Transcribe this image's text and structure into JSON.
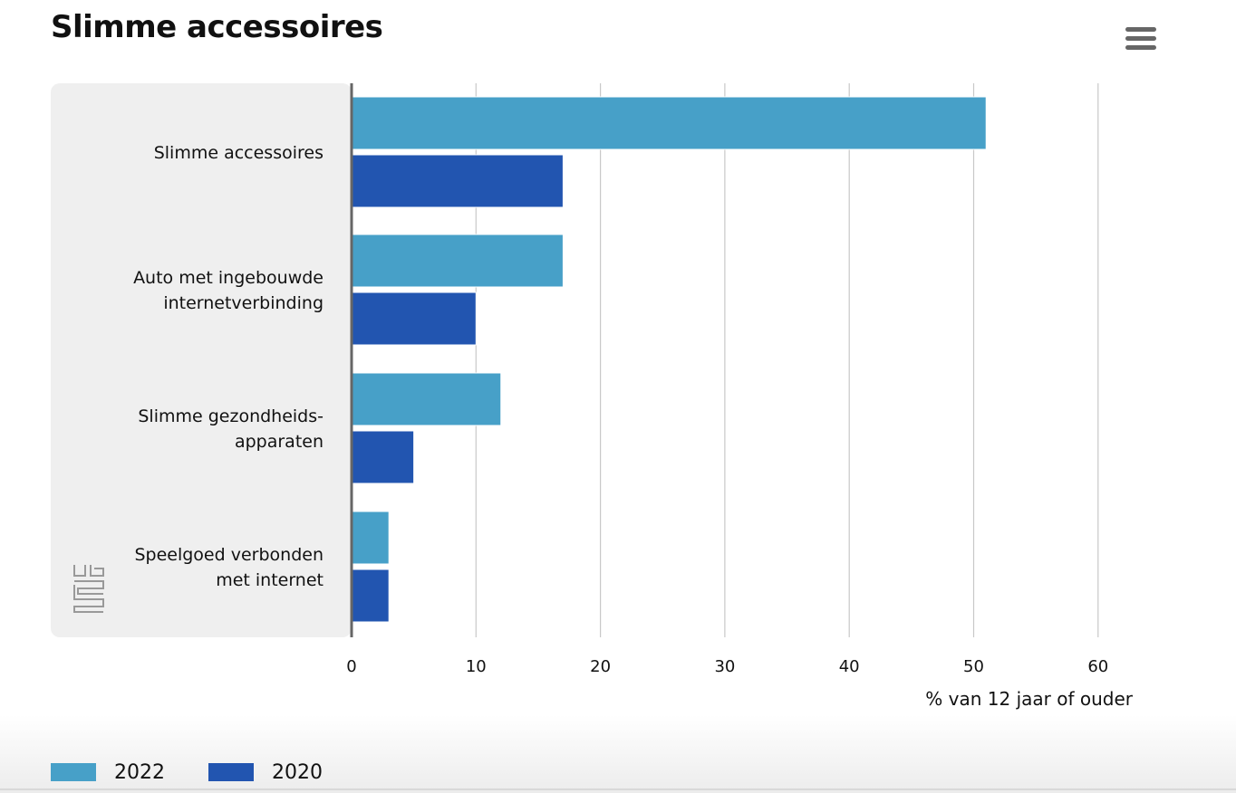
{
  "header": {
    "title": "Slimme accessoires",
    "menu_icon": "hamburger-menu-icon"
  },
  "logo": {
    "text": "cbs",
    "icon": "cbs-logo-icon"
  },
  "colors": {
    "series_2022": "#47a0c8",
    "series_2020": "#2255b0",
    "plot_band": "#efefef",
    "grid": "#c8c8c8",
    "axis": "#666666"
  },
  "chart_data": {
    "type": "bar",
    "orientation": "horizontal",
    "title": "Slimme accessoires",
    "categories": [
      [
        "Slimme accessoires"
      ],
      [
        "Auto met ingebouwde",
        "internetverbinding"
      ],
      [
        "Slimme gezondheids-",
        "apparaten"
      ],
      [
        "Speelgoed verbonden",
        "met internet"
      ]
    ],
    "series": [
      {
        "name": "2022",
        "color": "#47a0c8",
        "values": [
          51,
          17,
          12,
          3
        ]
      },
      {
        "name": "2020",
        "color": "#2255b0",
        "values": [
          17,
          10,
          5,
          3
        ]
      }
    ],
    "xlim": [
      0,
      60
    ],
    "ticks": [
      "0",
      "10",
      "20",
      "30",
      "40",
      "50",
      "60"
    ],
    "xlabel": "% van 12 jaar of ouder",
    "grid": true,
    "legend": "bottom-left"
  }
}
